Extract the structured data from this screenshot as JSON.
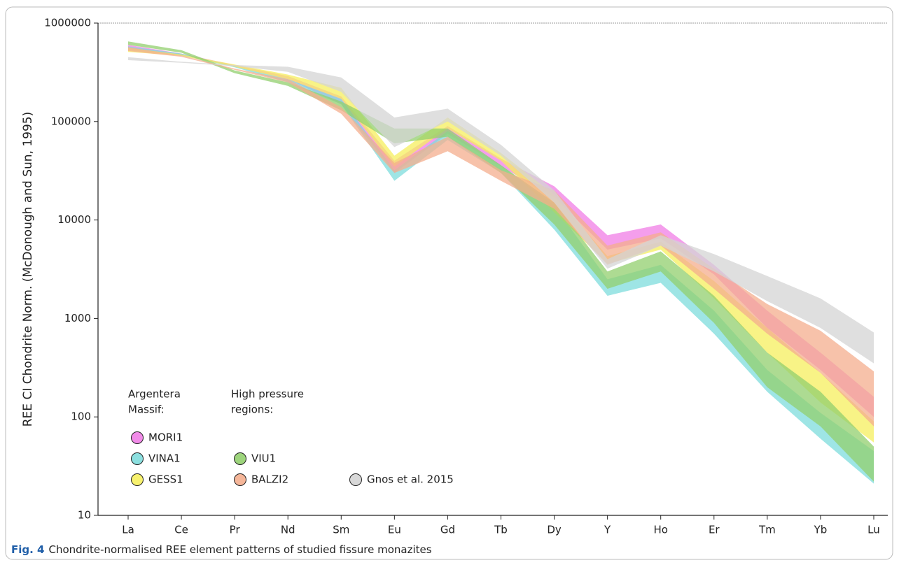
{
  "chart_data": {
    "type": "band",
    "y_label": "REE CI Chondrite Norm. (McDonough and Sun, 1995)",
    "categories": [
      "La",
      "Ce",
      "Pr",
      "Nd",
      "Sm",
      "Eu",
      "Gd",
      "Tb",
      "Dy",
      "Y",
      "Ho",
      "Er",
      "Tm",
      "Yb",
      "Lu"
    ],
    "ylim": [
      10,
      1000000
    ],
    "yticks": [
      10,
      100,
      1000,
      10000,
      100000,
      1000000
    ],
    "log_y": true,
    "legend_groups": [
      [
        "Argentera",
        "Massif:"
      ],
      [
        "High pressure",
        "regions:"
      ]
    ],
    "series": [
      {
        "name": "MORI1",
        "color": "#f07ee6",
        "upper": [
          600000,
          490000,
          375000,
          290000,
          180000,
          40000,
          90000,
          42000,
          22000,
          7000,
          9000,
          3500,
          1200,
          450,
          160
        ],
        "lower": [
          560000,
          470000,
          360000,
          270000,
          150000,
          30000,
          75000,
          35000,
          17000,
          5000,
          6500,
          2800,
          800,
          300,
          100
        ]
      },
      {
        "name": "VINA1",
        "color": "#7edcdc",
        "upper": [
          580000,
          490000,
          365000,
          270000,
          170000,
          32000,
          80000,
          36000,
          14000,
          2500,
          3500,
          1200,
          300,
          110,
          45
        ],
        "lower": [
          530000,
          470000,
          355000,
          250000,
          150000,
          25000,
          65000,
          30000,
          8000,
          1700,
          2300,
          700,
          180,
          60,
          21
        ]
      },
      {
        "name": "GESS1",
        "color": "#f6ef5e",
        "upper": [
          560000,
          480000,
          380000,
          300000,
          220000,
          45000,
          110000,
          48000,
          18000,
          4300,
          6000,
          2400,
          800,
          280,
          90
        ],
        "lower": [
          510000,
          465000,
          360000,
          270000,
          170000,
          35000,
          85000,
          40000,
          12000,
          3600,
          5000,
          1600,
          450,
          140,
          55
        ]
      },
      {
        "name": "VIU1",
        "color": "#92cf6e",
        "upper": [
          650000,
          530000,
          330000,
          250000,
          160000,
          85000,
          85000,
          36000,
          15000,
          3000,
          4800,
          1700,
          450,
          180,
          50
        ],
        "lower": [
          600000,
          500000,
          310000,
          230000,
          130000,
          60000,
          70000,
          30000,
          9000,
          2000,
          3000,
          900,
          200,
          80,
          22
        ]
      },
      {
        "name": "BALZI2",
        "color": "#f4ae8e",
        "upper": [
          570000,
          470000,
          345000,
          270000,
          140000,
          38000,
          70000,
          32000,
          20000,
          5500,
          7500,
          3200,
          1400,
          750,
          290
        ],
        "lower": [
          520000,
          455000,
          335000,
          250000,
          120000,
          30000,
          50000,
          25000,
          13000,
          3500,
          5500,
          2000,
          700,
          280,
          80
        ]
      },
      {
        "name": "Gnos et al. 2015",
        "color": "#d4d4d4",
        "upper": [
          450000,
          405000,
          375000,
          360000,
          280000,
          110000,
          135000,
          58000,
          20000,
          4000,
          7000,
          4500,
          2700,
          1600,
          720
        ],
        "lower": [
          420000,
          395000,
          365000,
          320000,
          200000,
          55000,
          100000,
          45000,
          15000,
          3200,
          5500,
          3000,
          1500,
          800,
          350
        ]
      }
    ],
    "caption": {
      "label": "Fig. 4",
      "text": "Chondrite-normalised REE element patterns of studied fissure monazites"
    }
  }
}
